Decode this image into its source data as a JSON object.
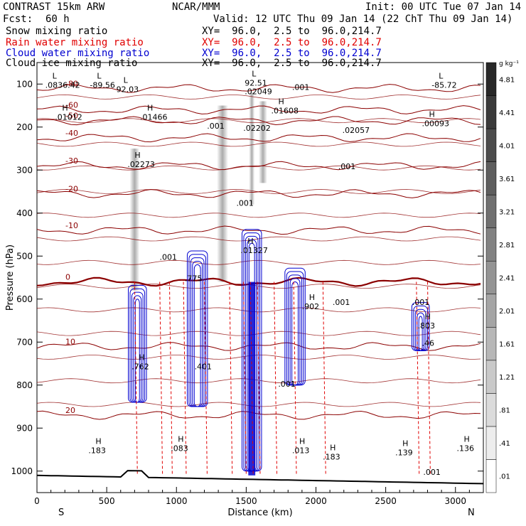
{
  "header": {
    "title": "CONTRAST 15km ARW",
    "center": "NCAR/MMM",
    "init": "Init: 00 UTC Tue 07 Jan 14",
    "fcst_label": "Fcst:",
    "fcst_value": "60 h",
    "valid": "Valid: 12 UTC Thu 09 Jan 14 (22 ChT Thu 09 Jan 14)",
    "fields": [
      {
        "name": "Snow mixing ratio",
        "xy": "XY=  96.0,  2.5 to  96.0,214.7",
        "color": "#000000"
      },
      {
        "name": "Rain water mixing ratio",
        "xy": "XY=  96.0,  2.5 to  96.0,214.7",
        "color": "#e00000"
      },
      {
        "name": "Cloud water mixing ratio",
        "xy": "XY=  96.0,  2.5 to  96.0,214.7",
        "color": "#0000d0"
      },
      {
        "name": "Cloud ice mixing ratio",
        "xy": "XY=  96.0,  2.5 to  96.0,214.7",
        "color": "#000000"
      }
    ]
  },
  "chart_data": {
    "type": "cross-section",
    "xlabel": "Distance (km)",
    "ylabel": "Pressure (hPa)",
    "x_range": [
      0,
      3200
    ],
    "y_range_hpa": [
      1050,
      50
    ],
    "x_ticks": [
      0,
      500,
      1000,
      1500,
      2000,
      2500,
      3000
    ],
    "y_ticks": [
      100,
      200,
      300,
      400,
      500,
      600,
      700,
      800,
      900,
      1000
    ],
    "end_labels": {
      "left": "S",
      "right": "N"
    },
    "colorbar": {
      "unit": "g kg⁻¹",
      "ticks": [
        ".01",
        ".41",
        ".81",
        "1.21",
        "1.61",
        "2.01",
        "2.41",
        "2.81",
        "3.21",
        "3.61",
        "4.01",
        "4.41",
        "4.81"
      ]
    },
    "temperature_contours": [
      {
        "label": "-80",
        "p": 110
      },
      {
        "label": "-60",
        "p": 160
      },
      {
        "label": "-50",
        "p": 185
      },
      {
        "label": "-40",
        "p": 225
      },
      {
        "label": "-30",
        "p": 290
      },
      {
        "label": "-20",
        "p": 355
      },
      {
        "label": "-10",
        "p": 440
      },
      {
        "label": "0",
        "p": 560
      },
      {
        "label": "10",
        "p": 710
      },
      {
        "label": "20",
        "p": 870
      }
    ],
    "extrema_labels": [
      {
        "type": "L",
        "value": ".0836.42",
        "x": 110,
        "p": 105
      },
      {
        "type": "L",
        "value": "-89.56",
        "x": 430,
        "p": 105
      },
      {
        "type": "L",
        "value": "92.03",
        "x": 620,
        "p": 115
      },
      {
        "type": "L",
        "value": "92.51",
        "x": 1540,
        "p": 100
      },
      {
        "type": "",
        "value": ".02049",
        "x": 1540,
        "p": 120
      },
      {
        "type": "",
        "value": ".001",
        "x": 1880,
        "p": 110
      },
      {
        "type": "L",
        "value": "-85.72",
        "x": 2880,
        "p": 105
      },
      {
        "type": "H",
        "value": ".01012",
        "x": 180,
        "p": 180
      },
      {
        "type": "H",
        "value": ".01466",
        "x": 790,
        "p": 180
      },
      {
        "type": "H",
        "value": ".01608",
        "x": 1730,
        "p": 165
      },
      {
        "type": "",
        "value": ".001",
        "x": 1270,
        "p": 200
      },
      {
        "type": "",
        "value": ".02202",
        "x": 1530,
        "p": 205
      },
      {
        "type": "",
        "value": ".02057",
        "x": 2240,
        "p": 210
      },
      {
        "type": "H",
        "value": ".00093",
        "x": 2810,
        "p": 195
      },
      {
        "type": "H",
        "value": ".02273",
        "x": 700,
        "p": 290
      },
      {
        "type": "",
        "value": ".001",
        "x": 2210,
        "p": 295
      },
      {
        "type": "",
        "value": ".001",
        "x": 1480,
        "p": 380
      },
      {
        "type": "H",
        "value": ".01327",
        "x": 1510,
        "p": 490
      },
      {
        "type": "",
        "value": ".001",
        "x": 930,
        "p": 505
      },
      {
        "type": "",
        "value": ".775",
        "x": 1110,
        "p": 555
      },
      {
        "type": "H",
        "value": ".902",
        "x": 1950,
        "p": 620
      },
      {
        "type": "",
        "value": ".001",
        "x": 2170,
        "p": 610
      },
      {
        "type": "",
        "value": ".001",
        "x": 2740,
        "p": 610
      },
      {
        "type": "H",
        "value": ".803",
        "x": 2780,
        "p": 665
      },
      {
        "type": "",
        "value": ".46",
        "x": 2810,
        "p": 705
      },
      {
        "type": "H",
        "value": ".762",
        "x": 730,
        "p": 760
      },
      {
        "type": "",
        "value": ".401",
        "x": 1180,
        "p": 760
      },
      {
        "type": "",
        "value": ".001",
        "x": 1780,
        "p": 800
      },
      {
        "type": "H",
        "value": ".139",
        "x": 2620,
        "p": 960
      },
      {
        "type": "H",
        "value": ".136",
        "x": 3060,
        "p": 950
      },
      {
        "type": "H",
        "value": ".183",
        "x": 2100,
        "p": 970
      },
      {
        "type": "H",
        "value": ".183",
        "x": 420,
        "p": 955
      },
      {
        "type": "H",
        "value": ".083",
        "x": 1010,
        "p": 950
      },
      {
        "type": "H",
        "value": ".013",
        "x": 1880,
        "p": 955
      },
      {
        "type": "",
        "value": ".001",
        "x": 2820,
        "p": 1005
      }
    ]
  }
}
